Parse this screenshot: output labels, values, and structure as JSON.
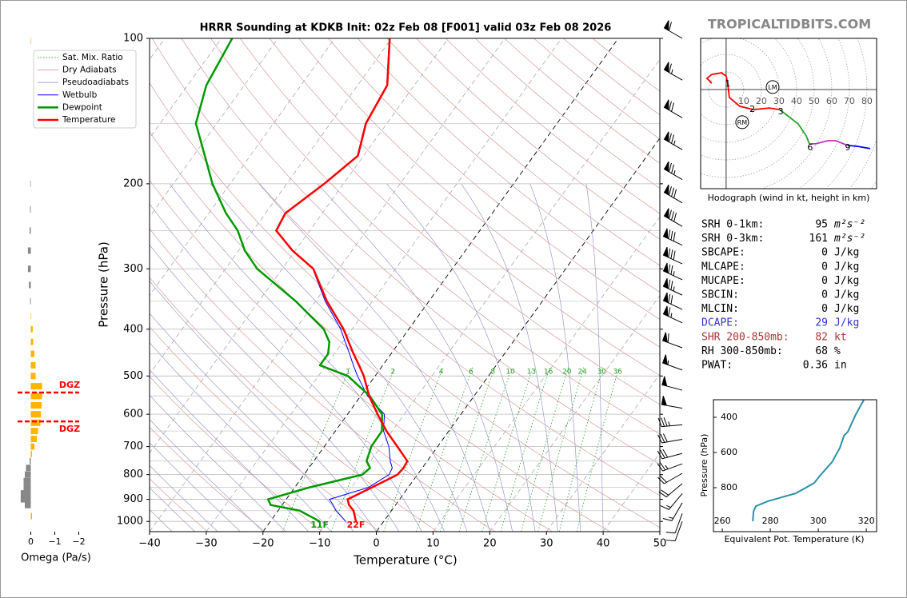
{
  "site": "TROPICALTIDBITS.COM",
  "chart_data": [
    {
      "type": "skewt",
      "title": "HRRR Sounding at KDKB Init: 02z Feb 08 [F001] valid 03z Feb 08 2026",
      "xlabel": "Temperature (°C)",
      "ylabel": "Pressure (hPa)",
      "xlim": [
        -40,
        50
      ],
      "ylim": [
        1050,
        100
      ],
      "log_y": true,
      "grid": true,
      "xticks": [
        {
          "value": -40,
          "label": "−40"
        },
        {
          "value": -30,
          "label": "−30"
        },
        {
          "value": -20,
          "label": "−20"
        },
        {
          "value": -10,
          "label": "−10"
        },
        0,
        10,
        20,
        30,
        40,
        50
      ],
      "yticks": [
        100,
        200,
        300,
        400,
        500,
        600,
        700,
        800,
        900,
        1000
      ],
      "ygrid": [
        150,
        250,
        350,
        450,
        550,
        650,
        750,
        850,
        950
      ],
      "legend": "upper left",
      "background": [
        {
          "name": "Sat. Mix. Ratio",
          "color": "#2ca02c"
        },
        {
          "name": "Dry Adiabats",
          "color": "#d99a9a"
        },
        {
          "name": "Pseudoadiabats",
          "color": "#9a9ad0"
        }
      ],
      "mixing_ratios": [
        1,
        2,
        4,
        6,
        8,
        10,
        13,
        16,
        20,
        24,
        30,
        36
      ],
      "pressure": [
        1000,
        950,
        925,
        900,
        850,
        800,
        775,
        750,
        700,
        650,
        600,
        550,
        500,
        475,
        450,
        425,
        400,
        350,
        300,
        275,
        250,
        230,
        200,
        175,
        150,
        125,
        100
      ],
      "series": [
        {
          "name": "Wetbulb",
          "color": "#0000ff",
          "width": 1,
          "values": [
            -6.7,
            -9.8,
            -11.0,
            -12.4,
            -7.0,
            -5.0,
            -5.3,
            -6.5,
            -8.6,
            -11.5,
            -13.5,
            -18.8,
            -23.1,
            -25.2,
            -27.3,
            -29.6,
            -32.0,
            -38.3,
            -44.6,
            -50.6,
            -56.0,
            -56.6,
            -53.5,
            -51.1,
            -53.8,
            -54.9,
            -60.4
          ]
        },
        {
          "name": "Dewpoint",
          "color": "#009900",
          "width": 2.5,
          "values": [
            -11.3,
            -16.2,
            -22.0,
            -23.2,
            -17.4,
            -9.7,
            -9.2,
            -10.7,
            -11.7,
            -11.8,
            -13.9,
            -18.4,
            -24.8,
            -31.1,
            -31.1,
            -32.4,
            -35.0,
            -43.5,
            -54.4,
            -58.9,
            -62.7,
            -67.0,
            -73.1,
            -78.0,
            -83.7,
            -86.7,
            -88.1
          ]
        },
        {
          "name": "Temperature",
          "color": "#ff0000",
          "width": 2.5,
          "values": [
            -4.9,
            -6.7,
            -8.2,
            -9.2,
            -6.4,
            -3.5,
            -3.3,
            -3.5,
            -7.1,
            -11.0,
            -14.7,
            -18.5,
            -22.0,
            -24.2,
            -26.6,
            -29.0,
            -31.5,
            -38.0,
            -44.5,
            -50.5,
            -55.9,
            -56.5,
            -53.4,
            -51.0,
            -53.7,
            -54.8,
            -60.3
          ]
        }
      ],
      "surface_labels": [
        {
          "text": "11F",
          "color": "#009900"
        },
        {
          "text": "22F",
          "color": "#ff0000"
        }
      ],
      "wind_barbs": {
        "pressure": [
          100,
          122,
          146,
          170,
          196,
          219,
          245,
          268,
          293,
          316,
          340,
          364,
          388,
          437,
          486,
          535,
          583,
          631,
          676,
          723,
          760,
          795,
          835,
          876,
          915,
          963,
          1000
        ],
        "speed": [
          60,
          65,
          70,
          75,
          75,
          80,
          80,
          80,
          80,
          75,
          75,
          70,
          65,
          60,
          55,
          50,
          50,
          35,
          30,
          30,
          25,
          20,
          20,
          15,
          15,
          10,
          10
        ],
        "direction": [
          300,
          300,
          300,
          300,
          300,
          300,
          300,
          295,
          295,
          295,
          295,
          295,
          295,
          290,
          290,
          285,
          280,
          265,
          260,
          255,
          250,
          240,
          230,
          220,
          210,
          200,
          200
        ]
      }
    },
    {
      "type": "bar",
      "orientation": "horizontal",
      "xlabel": "Omega (Pa/s)",
      "xlim": [
        0.55,
        -2.05
      ],
      "ylim": [
        1050,
        100
      ],
      "xticks": [
        0,
        {
          "value": -1,
          "label": "−1"
        },
        {
          "value": -2,
          "label": "−2"
        }
      ],
      "positive_color": "#888888",
      "negative_color": "#ffb400",
      "pressure": [
        101,
        200,
        226,
        250,
        275,
        300,
        324,
        350,
        376,
        400,
        425,
        450,
        475,
        500,
        525,
        550,
        575,
        600,
        625,
        650,
        675,
        700,
        725,
        750,
        775,
        800,
        825,
        850,
        875,
        900,
        925,
        975
      ],
      "values": [
        -0.02,
        0.02,
        0.03,
        0.05,
        0.12,
        0.12,
        0.08,
        0.03,
        -0.02,
        -0.08,
        -0.1,
        -0.15,
        -0.2,
        -0.2,
        -0.47,
        -0.47,
        -0.45,
        -0.42,
        -0.4,
        -0.3,
        -0.25,
        -0.15,
        -0.05,
        0.05,
        0.2,
        0.25,
        0.3,
        0.3,
        0.42,
        0.42,
        0.25,
        -0.05
      ],
      "dgz": [
        {
          "pressure": 541,
          "label": "DGZ"
        },
        {
          "pressure": 621,
          "label": "DGZ"
        }
      ]
    },
    {
      "type": "hodograph",
      "caption": "Hodograph (wind in kt, height in km)",
      "xlim": [
        -14.5,
        85.5
      ],
      "ylim": [
        -56.4,
        29.1
      ],
      "rings": [
        10,
        20,
        30,
        40,
        50,
        60,
        70,
        80
      ],
      "series": [
        {
          "color": "#ff0000",
          "x": [
            -8.2,
            -10.9,
            -8.2,
            -2.7,
            0,
            0.9,
            1.8,
            7.7,
            15.5,
            24.5,
            30.5
          ],
          "values": [
            3.6,
            6.4,
            8.6,
            9.5,
            7.7,
            3.2,
            -4.5,
            -9.5,
            -11.4,
            -10.5,
            -11.4
          ]
        },
        {
          "color": "#2ca02c",
          "x": [
            30.5,
            35,
            40.9,
            45.5,
            47.3
          ],
          "values": [
            -11.4,
            -15,
            -19.5,
            -26.4,
            -30.9
          ]
        },
        {
          "color": "#c030c0",
          "x": [
            47.3,
            50.9,
            57.7,
            62.3,
            69.1
          ],
          "values": [
            -30.9,
            -30.9,
            -29.1,
            -29.1,
            -31.8
          ]
        },
        {
          "color": "#0000ff",
          "x": [
            69.1,
            74.5,
            81.8
          ],
          "values": [
            -31.8,
            -32.3,
            -33.6
          ]
        }
      ],
      "height_labels": [
        {
          "km": 1,
          "x": 0.9,
          "y": 3.2
        },
        {
          "km": 2,
          "x": 14.9,
          "y": -11.4
        },
        {
          "km": 3,
          "x": 31.0,
          "y": -12.7
        },
        {
          "km": 6,
          "x": 47.7,
          "y": -33.2
        },
        {
          "km": 9,
          "x": 69.1,
          "y": -33.2
        }
      ],
      "motion": [
        {
          "label": "LM",
          "x": 26.4,
          "y": 1.4
        },
        {
          "label": "RM",
          "x": 9.1,
          "y": -18.6
        }
      ]
    },
    {
      "type": "line",
      "xlabel": "Equivalent Pot. Temperature (K)",
      "ylabel": "Pressure (hPa)",
      "xlim": [
        256.3,
        324.3
      ],
      "ylim": [
        1050,
        300
      ],
      "xticks": [
        260,
        280,
        300,
        320
      ],
      "yticks": [
        400,
        600,
        800
      ],
      "color": "#2a8fa8",
      "x": [
        319,
        315.7,
        312.3,
        310.7,
        309,
        305.7,
        300.7,
        298.3,
        290.7,
        279,
        274,
        273,
        272.7
      ],
      "values": [
        300,
        382,
        482,
        505,
        573,
        655,
        732,
        773,
        832,
        877,
        905,
        936,
        991
      ]
    }
  ],
  "stats": [
    {
      "label": "SRH 0-1km:",
      "value": 95,
      "unit": "m²s⁻²"
    },
    {
      "label": "SRH 0-3km:",
      "value": 161,
      "unit": "m²s⁻²"
    },
    {
      "label": "SBCAPE:",
      "value": 0,
      "unit": "J/kg"
    },
    {
      "label": "MLCAPE:",
      "value": 0,
      "unit": "J/kg"
    },
    {
      "label": "MUCAPE:",
      "value": 0,
      "unit": "J/kg"
    },
    {
      "label": "SBCIN:",
      "value": 0,
      "unit": "J/kg"
    },
    {
      "label": "MLCIN:",
      "value": 0,
      "unit": "J/kg"
    },
    {
      "label": "DCAPE:",
      "value": 29,
      "unit": "J/kg",
      "color": "#3333cc"
    },
    {
      "label": "SHR 200-850mb:",
      "value": 82,
      "unit": "kt",
      "color": "#aa3333"
    },
    {
      "label": "RH 300-850mb:",
      "value": 68,
      "unit": "%"
    },
    {
      "label": "PWAT:",
      "value": 0.36,
      "unit": "in"
    }
  ]
}
